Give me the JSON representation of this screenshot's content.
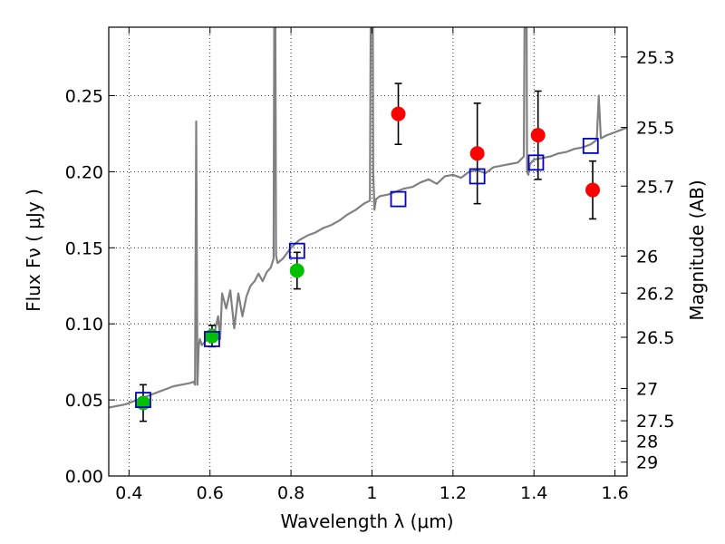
{
  "chart_data": {
    "type": "scatter",
    "xlabel": "Wavelength  λ (μm)",
    "ylabel": "Flux  Fν  ( μJy )",
    "ylabel2": "Magnitude (AB)",
    "xlim": [
      0.35,
      1.63
    ],
    "ylim": [
      0.0,
      0.295
    ],
    "x_ticks": [
      0.4,
      0.6,
      0.8,
      1.0,
      1.2,
      1.4,
      1.6
    ],
    "x_tick_labels": [
      "0.4",
      "0.6",
      "0.8",
      "1",
      "1.2",
      "1.4",
      "1.6"
    ],
    "y_ticks": [
      0.0,
      0.05,
      0.1,
      0.15,
      0.2,
      0.25
    ],
    "y_tick_labels": [
      "0.00",
      "0.05",
      "0.10",
      "0.15",
      "0.20",
      "0.25"
    ],
    "mag_ticks": [
      25.3,
      25.5,
      25.7,
      26,
      26.2,
      26.5,
      27,
      27.5,
      28,
      29
    ],
    "mag_tick_labels": [
      "25.3",
      "25.5",
      "25.7",
      "26",
      "26.2",
      "26.5",
      "27",
      "27.5",
      "28",
      "29"
    ],
    "grid": true,
    "colors": {
      "spectrum": "#808080",
      "observed_optical": "#00c000",
      "observed_nir": "#ff0000",
      "model": "#0000cc",
      "errorbar": "#000000"
    },
    "series": [
      {
        "kind": "line",
        "x": [
          0.35,
          0.37,
          0.39,
          0.41,
          0.43,
          0.45,
          0.47,
          0.49,
          0.51,
          0.53,
          0.55,
          0.56,
          0.563,
          0.566,
          0.569,
          0.572,
          0.575,
          0.58,
          0.59,
          0.6,
          0.61,
          0.62,
          0.625,
          0.63,
          0.64,
          0.65,
          0.66,
          0.67,
          0.68,
          0.69,
          0.7,
          0.71,
          0.72,
          0.73,
          0.74,
          0.75,
          0.757,
          0.76,
          0.763,
          0.767,
          0.78,
          0.8,
          0.82,
          0.84,
          0.86,
          0.88,
          0.9,
          0.92,
          0.94,
          0.96,
          0.98,
          0.995,
          1.0,
          1.003,
          1.006,
          1.01,
          1.02,
          1.04,
          1.06,
          1.08,
          1.1,
          1.12,
          1.14,
          1.16,
          1.18,
          1.2,
          1.22,
          1.24,
          1.26,
          1.28,
          1.3,
          1.32,
          1.34,
          1.36,
          1.375,
          1.38,
          1.383,
          1.386,
          1.39,
          1.4,
          1.42,
          1.44,
          1.46,
          1.48,
          1.5,
          1.52,
          1.54,
          1.555,
          1.56,
          1.565,
          1.58,
          1.6,
          1.63
        ],
        "y": [
          0.045,
          0.046,
          0.047,
          0.049,
          0.051,
          0.053,
          0.055,
          0.057,
          0.059,
          0.06,
          0.061,
          0.062,
          0.06,
          0.233,
          0.06,
          0.085,
          0.09,
          0.086,
          0.089,
          0.09,
          0.093,
          0.105,
          0.09,
          0.12,
          0.11,
          0.122,
          0.097,
          0.12,
          0.105,
          0.118,
          0.125,
          0.128,
          0.133,
          0.128,
          0.134,
          0.137,
          0.143,
          0.43,
          0.145,
          0.14,
          0.143,
          0.15,
          0.155,
          0.158,
          0.16,
          0.163,
          0.165,
          0.168,
          0.172,
          0.175,
          0.179,
          0.181,
          0.5,
          0.2,
          0.175,
          0.182,
          0.184,
          0.185,
          0.187,
          0.189,
          0.19,
          0.193,
          0.195,
          0.192,
          0.197,
          0.198,
          0.196,
          0.2,
          0.201,
          0.199,
          0.203,
          0.204,
          0.205,
          0.206,
          0.21,
          0.45,
          0.2,
          0.198,
          0.205,
          0.208,
          0.209,
          0.21,
          0.212,
          0.213,
          0.215,
          0.216,
          0.218,
          0.221,
          0.25,
          0.222,
          0.224,
          0.226,
          0.229
        ],
        "color": "#808080"
      },
      {
        "kind": "points",
        "marker": "circle",
        "color": "#00c000",
        "x": [
          0.435,
          0.605,
          0.815
        ],
        "y": [
          0.048,
          0.092,
          0.135
        ],
        "yerr": [
          0.012,
          0.007,
          0.012
        ]
      },
      {
        "kind": "points",
        "marker": "circle",
        "color": "#ff0000",
        "x": [
          1.065,
          1.26,
          1.41,
          1.545
        ],
        "y": [
          0.238,
          0.212,
          0.224,
          0.188
        ],
        "yerr": [
          0.02,
          0.033,
          0.029,
          0.019
        ]
      },
      {
        "kind": "points",
        "marker": "square",
        "color": "#0000cc",
        "x": [
          0.435,
          0.605,
          0.815,
          1.065,
          1.26,
          1.405,
          1.54
        ],
        "y": [
          0.05,
          0.09,
          0.148,
          0.182,
          0.197,
          0.206,
          0.217
        ]
      }
    ]
  }
}
